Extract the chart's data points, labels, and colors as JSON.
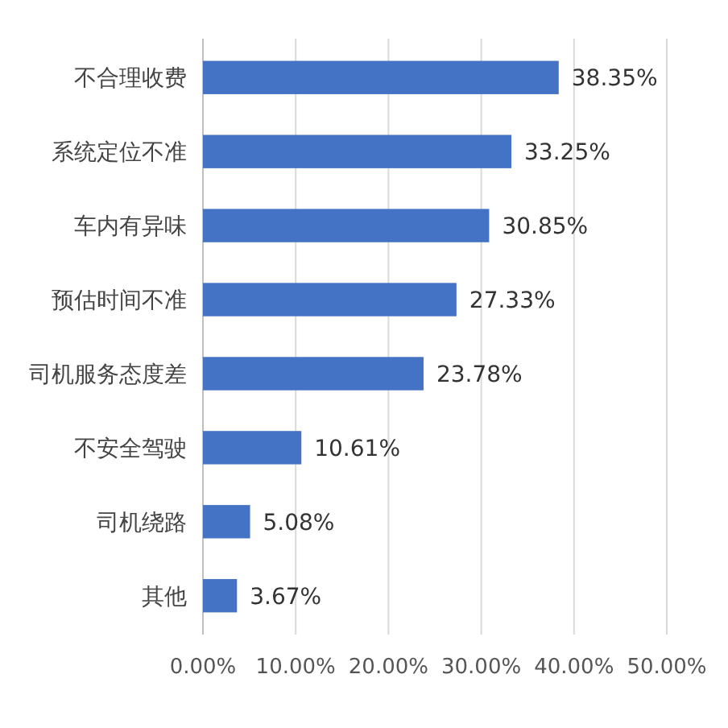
{
  "chart_data": {
    "type": "bar",
    "orientation": "horizontal",
    "categories": [
      "不合理收费",
      "系统定位不准",
      "车内有异味",
      "预估时间不准",
      "司机服务态度差",
      "不安全驾驶",
      "司机绕路",
      "其他"
    ],
    "values": [
      38.35,
      33.25,
      30.85,
      27.33,
      23.78,
      10.61,
      5.08,
      3.67
    ],
    "value_labels": [
      "38.35%",
      "33.25%",
      "30.85%",
      "27.33%",
      "23.78%",
      "10.61%",
      "5.08%",
      "3.67%"
    ],
    "color": "#4472c4",
    "xlim": [
      0,
      50
    ],
    "xticks": [
      {
        "value": 0,
        "label": "0.00%"
      },
      {
        "value": 10,
        "label": "10.00%"
      },
      {
        "value": 20,
        "label": "20.00%"
      },
      {
        "value": 30,
        "label": "30.00%"
      },
      {
        "value": 40,
        "label": "40.00%"
      },
      {
        "value": 50,
        "label": "50.00%"
      }
    ],
    "grid": "x"
  }
}
